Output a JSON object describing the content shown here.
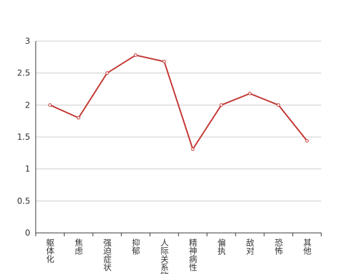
{
  "chart_data": {
    "type": "line",
    "categories": [
      "躯体化",
      "焦虑",
      "强迫症状",
      "抑郁",
      "人际关系敏感",
      "精神病性",
      "偏执",
      "敌对",
      "恐怖",
      "其他"
    ],
    "values": [
      2.0,
      1.8,
      2.5,
      2.78,
      2.68,
      1.31,
      2.0,
      2.18,
      2.0,
      1.44
    ],
    "color": "#c23531",
    "ylim": [
      0,
      3
    ],
    "yticks": [
      0,
      0.5,
      1,
      1.5,
      2,
      2.5,
      3
    ],
    "grid": true
  }
}
